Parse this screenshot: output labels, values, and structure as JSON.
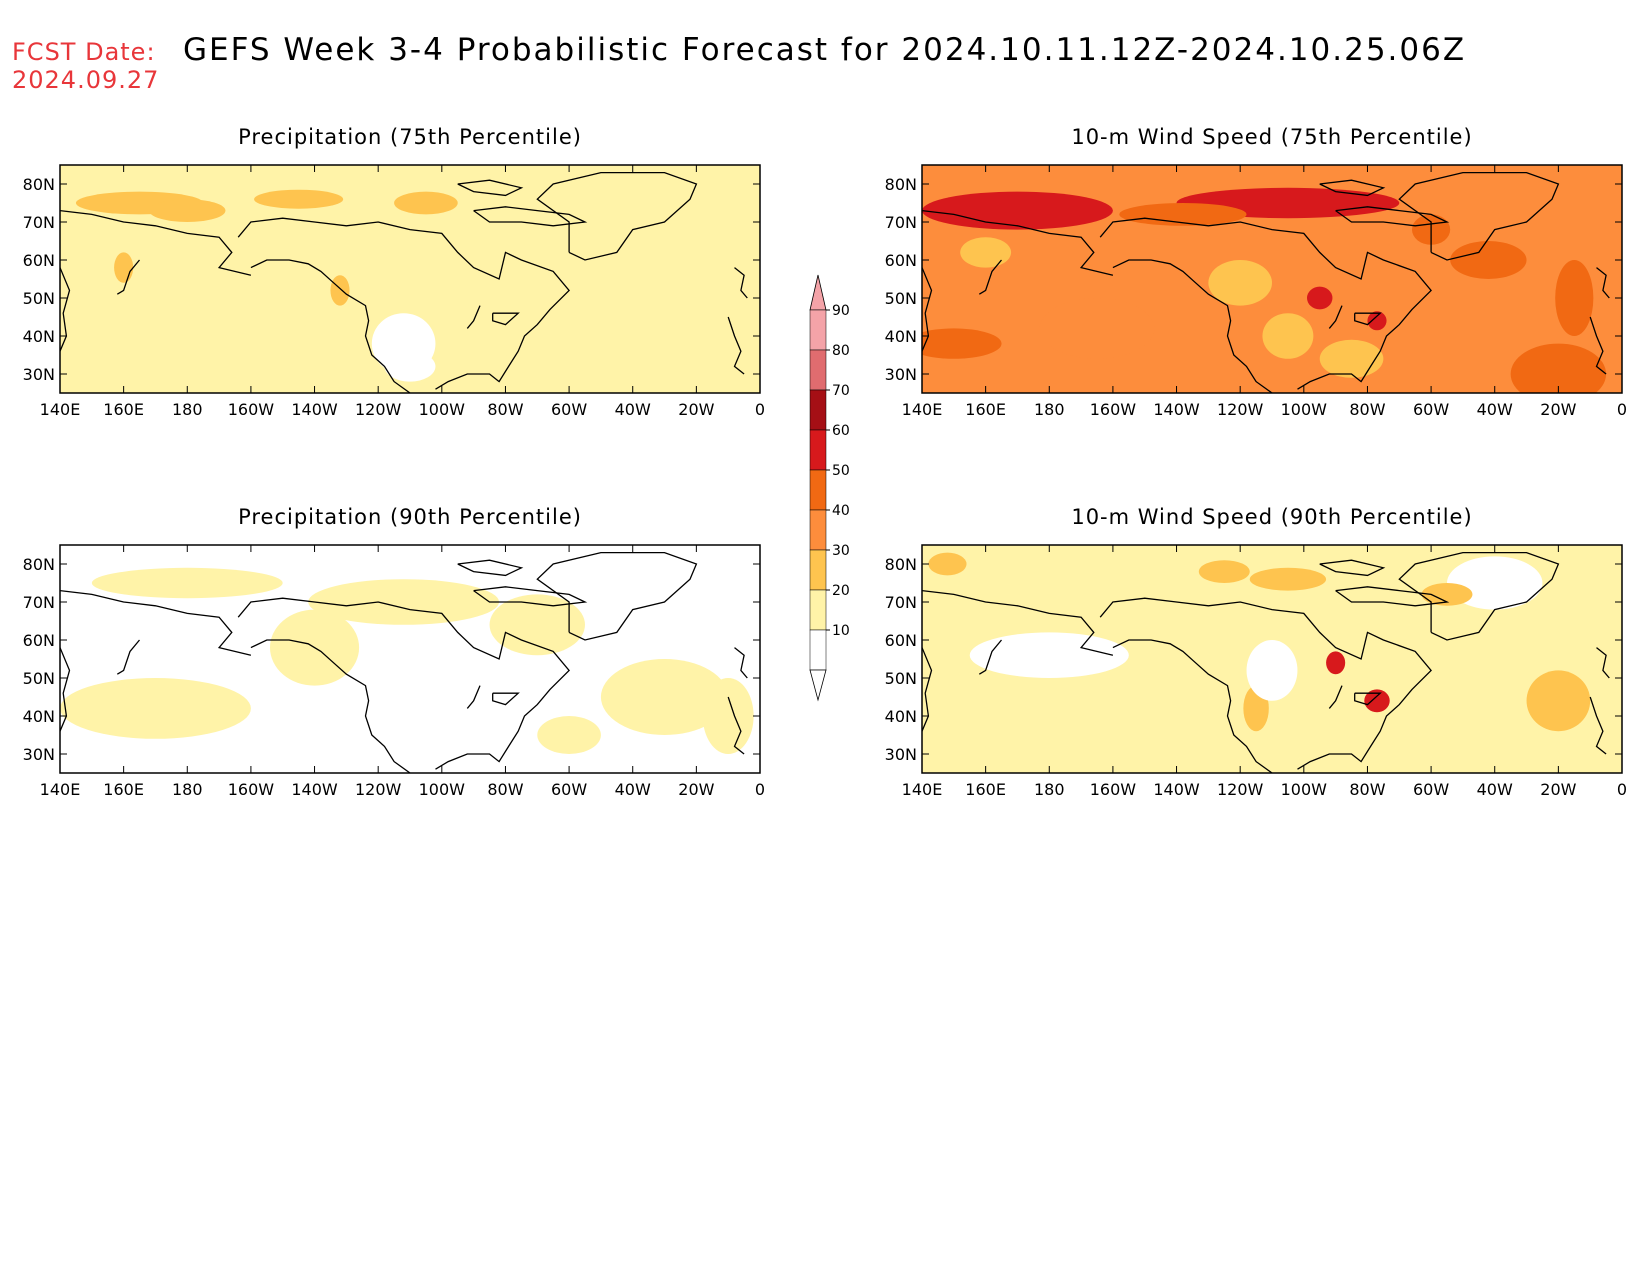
{
  "header": {
    "fcst_label": "FCST Date:",
    "fcst_date": "2024.09.27",
    "title": "GEFS Week 3-4 Probabilistic Forecast for 2024.10.11.12Z-2024.10.25.06Z"
  },
  "panels": [
    {
      "title": "Precipitation (75th Percentile)",
      "base_level": 20
    },
    {
      "title": "10-m Wind Speed (75th Percentile)",
      "base_level": 40
    },
    {
      "title": "Precipitation (90th Percentile)",
      "base_level": 10
    },
    {
      "title": "10-m Wind Speed (90th Percentile)",
      "base_level": 20
    }
  ],
  "axes": {
    "lon_labels": [
      "140E",
      "160E",
      "180",
      "160W",
      "140W",
      "120W",
      "100W",
      "80W",
      "60W",
      "40W",
      "20W",
      "0"
    ],
    "lat_labels": [
      "80N",
      "70N",
      "60N",
      "50N",
      "40N",
      "30N"
    ]
  },
  "colorbar": {
    "levels": [
      "90",
      "80",
      "70",
      "60",
      "50",
      "40",
      "30",
      "20",
      "10"
    ],
    "colors": [
      "#f4a3a8",
      "#e06c6f",
      "#a50f15",
      "#d7191c",
      "#f16913",
      "#fd8d3c",
      "#fec44f",
      "#fff3a8",
      "#ffffff"
    ]
  }
}
